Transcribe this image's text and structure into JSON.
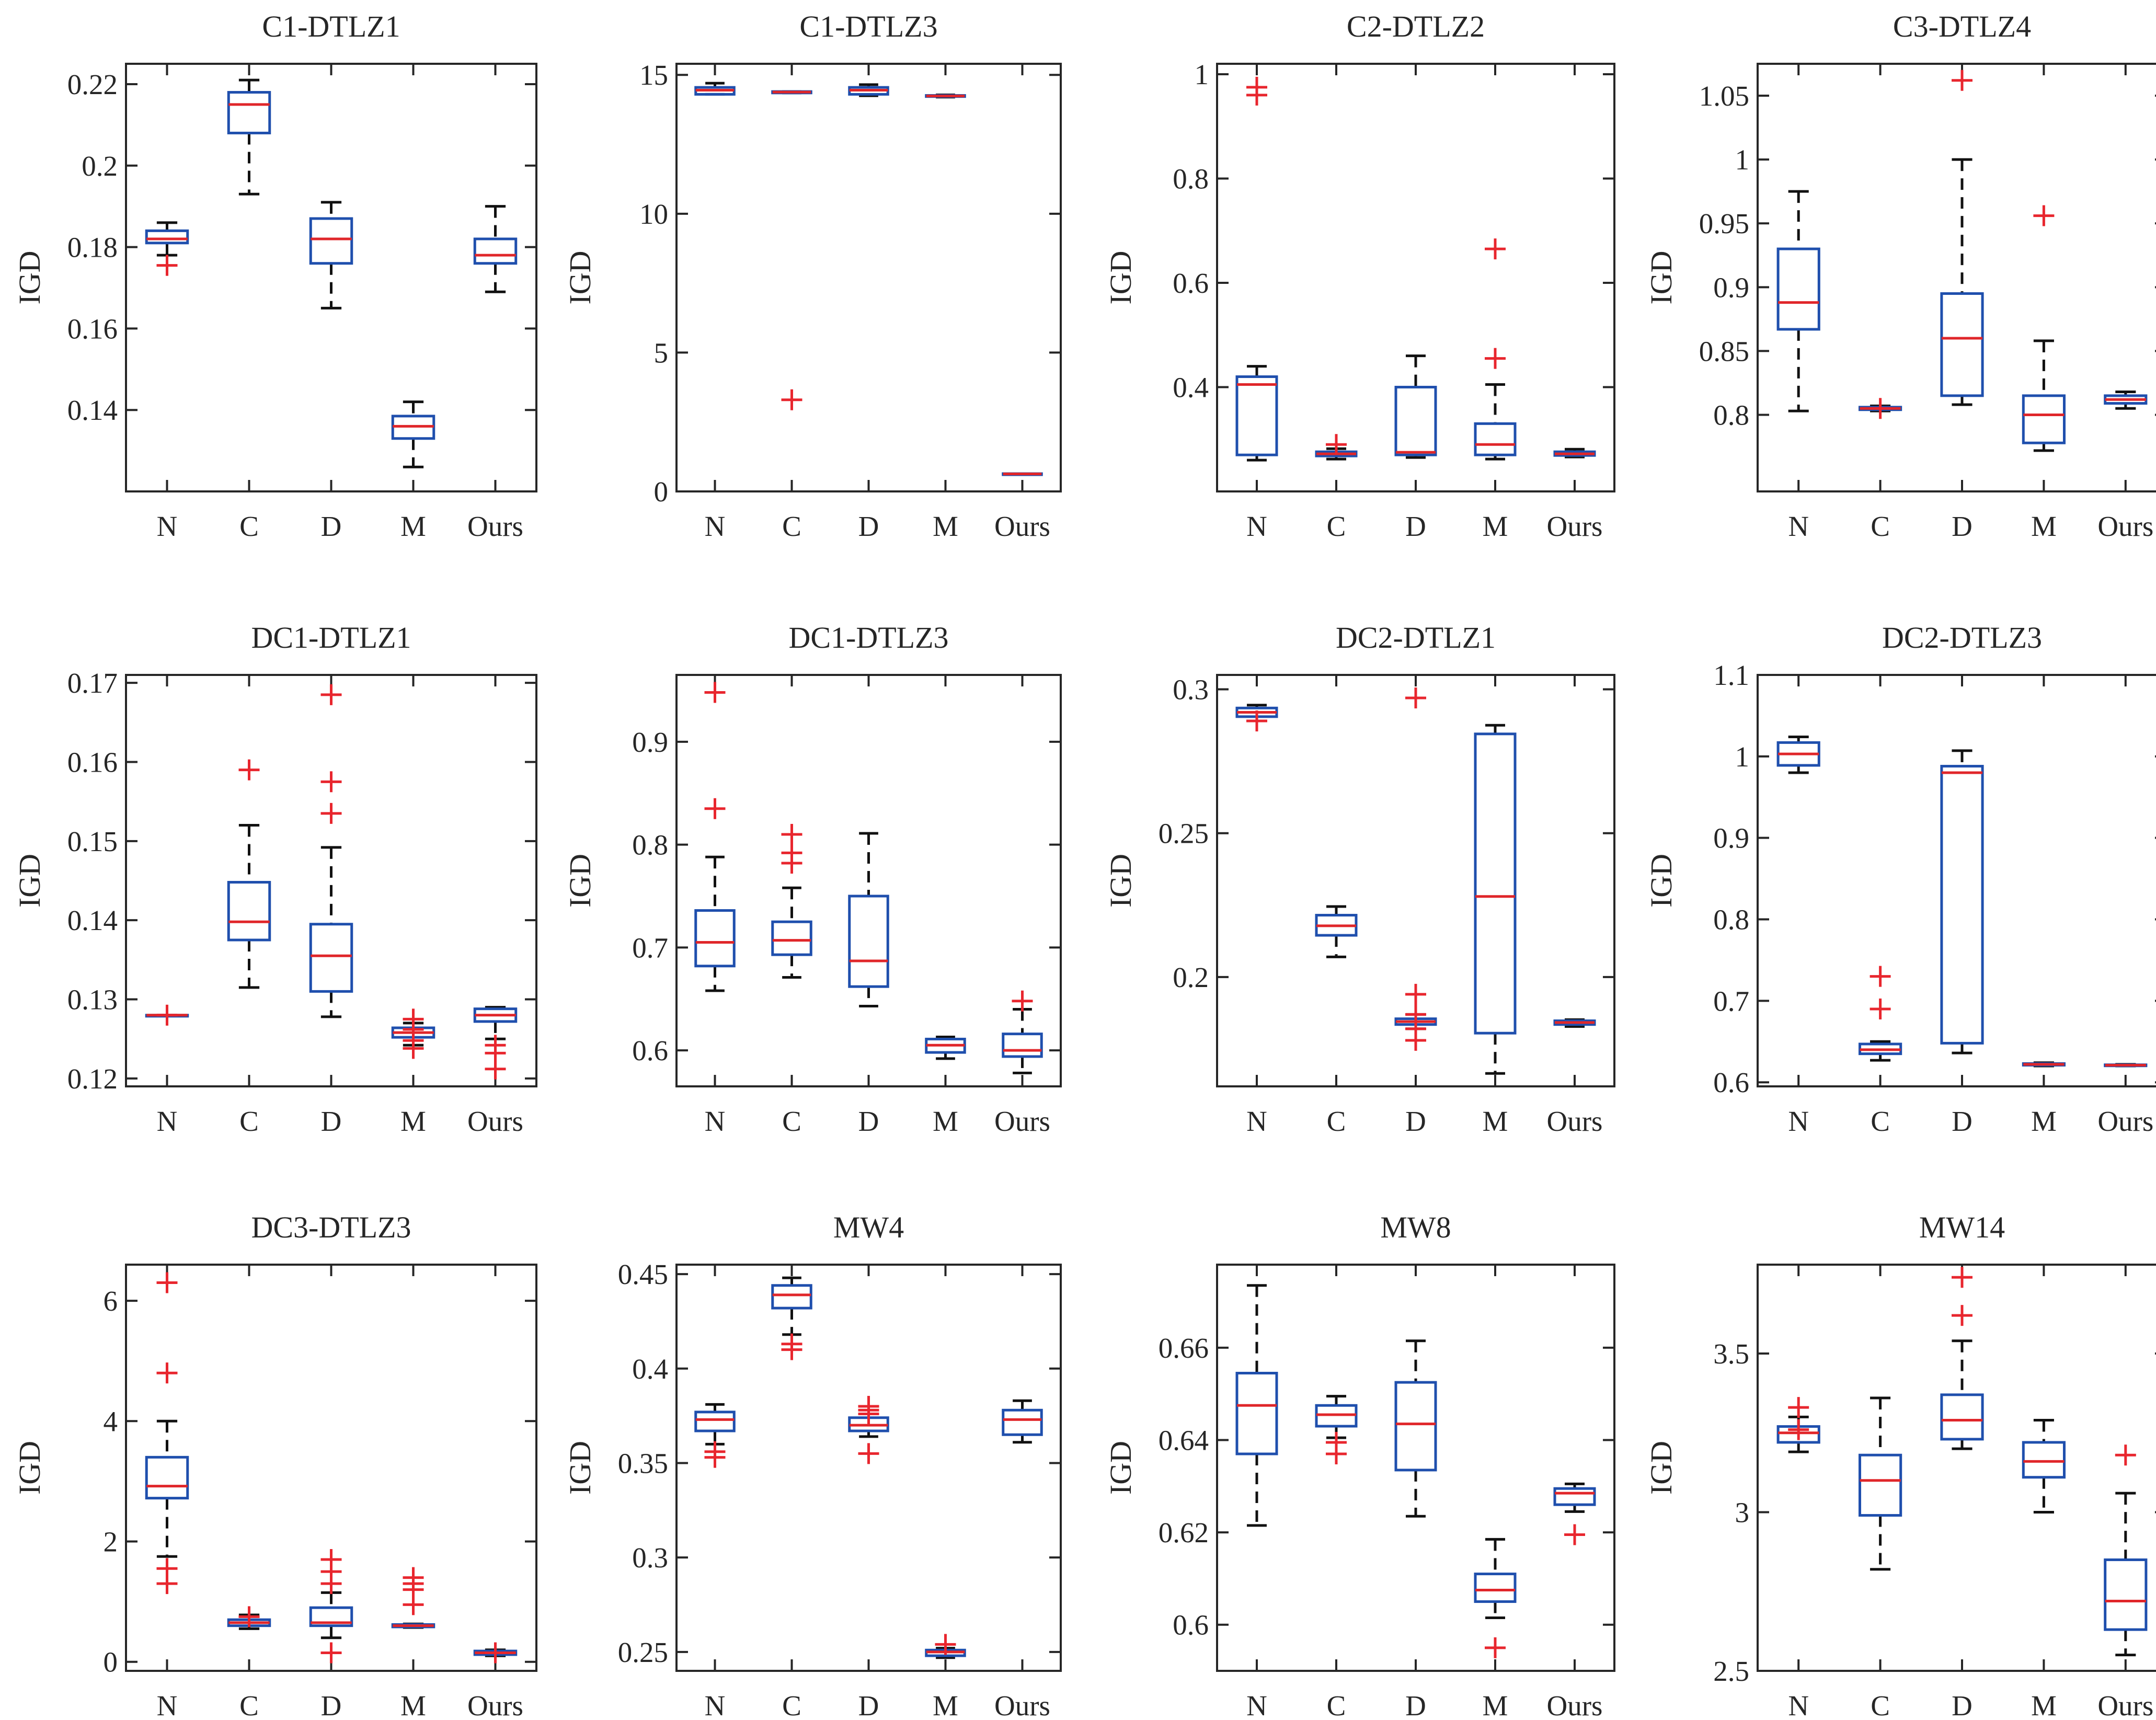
{
  "chart_data": [
    {
      "type": "box",
      "title": "C1-DTLZ1",
      "ylabel": "IGD",
      "categories": [
        "N",
        "C",
        "D",
        "M",
        "Ours"
      ],
      "ylim": [
        0.12,
        0.225
      ],
      "yticks": [
        0.14,
        0.16,
        0.18,
        0.2,
        0.22
      ],
      "ytick_labels": [
        "0.14",
        "0.16",
        "0.18",
        "0.2",
        "0.22"
      ],
      "boxes": [
        {
          "q1": 0.181,
          "median": 0.182,
          "q3": 0.184,
          "low": 0.178,
          "high": 0.186,
          "outliers": [
            0.1755
          ]
        },
        {
          "q1": 0.208,
          "median": 0.215,
          "q3": 0.218,
          "low": 0.193,
          "high": 0.221,
          "outliers": []
        },
        {
          "q1": 0.176,
          "median": 0.182,
          "q3": 0.187,
          "low": 0.165,
          "high": 0.191,
          "outliers": []
        },
        {
          "q1": 0.133,
          "median": 0.136,
          "q3": 0.1385,
          "low": 0.126,
          "high": 0.142,
          "outliers": []
        },
        {
          "q1": 0.176,
          "median": 0.178,
          "q3": 0.182,
          "low": 0.169,
          "high": 0.19,
          "outliers": []
        }
      ]
    },
    {
      "type": "box",
      "title": "C1-DTLZ3",
      "ylabel": "IGD",
      "categories": [
        "N",
        "C",
        "D",
        "M",
        "Ours"
      ],
      "ylim": [
        0,
        15.4
      ],
      "yticks": [
        0,
        5,
        10,
        15
      ],
      "ytick_labels": [
        "0",
        "5",
        "10",
        "15"
      ],
      "boxes": [
        {
          "q1": 14.3,
          "median": 14.45,
          "q3": 14.55,
          "low": 14.3,
          "high": 14.7,
          "outliers": []
        },
        {
          "q1": 14.35,
          "median": 14.38,
          "q3": 14.4,
          "low": 14.35,
          "high": 14.4,
          "outliers": [
            3.3
          ]
        },
        {
          "q1": 14.3,
          "median": 14.45,
          "q3": 14.55,
          "low": 14.25,
          "high": 14.65,
          "outliers": []
        },
        {
          "q1": 14.22,
          "median": 14.24,
          "q3": 14.26,
          "low": 14.2,
          "high": 14.28,
          "outliers": []
        },
        {
          "q1": 0.62,
          "median": 0.63,
          "q3": 0.64,
          "low": 0.62,
          "high": 0.64,
          "outliers": []
        }
      ]
    },
    {
      "type": "box",
      "title": "C2-DTLZ2",
      "ylabel": "IGD",
      "categories": [
        "N",
        "C",
        "D",
        "M",
        "Ours"
      ],
      "ylim": [
        0.2,
        1.02
      ],
      "yticks": [
        0.4,
        0.6,
        0.8,
        1
      ],
      "ytick_labels": [
        "0.4",
        "0.6",
        "0.8",
        "1"
      ],
      "boxes": [
        {
          "q1": 0.27,
          "median": 0.405,
          "q3": 0.42,
          "low": 0.26,
          "high": 0.44,
          "outliers": [
            0.96,
            0.975
          ]
        },
        {
          "q1": 0.268,
          "median": 0.272,
          "q3": 0.276,
          "low": 0.262,
          "high": 0.282,
          "outliers": [
            0.29
          ]
        },
        {
          "q1": 0.27,
          "median": 0.275,
          "q3": 0.4,
          "low": 0.265,
          "high": 0.46,
          "outliers": []
        },
        {
          "q1": 0.27,
          "median": 0.29,
          "q3": 0.33,
          "low": 0.262,
          "high": 0.405,
          "outliers": [
            0.455,
            0.665
          ]
        },
        {
          "q1": 0.269,
          "median": 0.272,
          "q3": 0.276,
          "low": 0.266,
          "high": 0.281,
          "outliers": []
        }
      ]
    },
    {
      "type": "box",
      "title": "C3-DTLZ4",
      "ylabel": "IGD",
      "categories": [
        "N",
        "C",
        "D",
        "M",
        "Ours"
      ],
      "ylim": [
        0.74,
        1.075
      ],
      "yticks": [
        0.8,
        0.85,
        0.9,
        0.95,
        1,
        1.05
      ],
      "ytick_labels": [
        "0.8",
        "0.85",
        "0.9",
        "0.95",
        "1",
        "1.05"
      ],
      "boxes": [
        {
          "q1": 0.867,
          "median": 0.888,
          "q3": 0.93,
          "low": 0.803,
          "high": 0.975,
          "outliers": []
        },
        {
          "q1": 0.804,
          "median": 0.805,
          "q3": 0.806,
          "low": 0.803,
          "high": 0.807,
          "outliers": [
            0.805
          ]
        },
        {
          "q1": 0.815,
          "median": 0.86,
          "q3": 0.895,
          "low": 0.808,
          "high": 1.0,
          "outliers": [
            1.062
          ]
        },
        {
          "q1": 0.778,
          "median": 0.8,
          "q3": 0.815,
          "low": 0.772,
          "high": 0.858,
          "outliers": [
            0.956
          ]
        },
        {
          "q1": 0.809,
          "median": 0.812,
          "q3": 0.815,
          "low": 0.805,
          "high": 0.818,
          "outliers": []
        }
      ]
    },
    {
      "type": "box",
      "title": "DC1-DTLZ1",
      "ylabel": "IGD",
      "categories": [
        "N",
        "C",
        "D",
        "M",
        "Ours"
      ],
      "ylim": [
        0.119,
        0.171
      ],
      "yticks": [
        0.12,
        0.13,
        0.14,
        0.15,
        0.16,
        0.17
      ],
      "ytick_labels": [
        "0.12",
        "0.13",
        "0.14",
        "0.15",
        "0.16",
        "0.17"
      ],
      "boxes": [
        {
          "q1": 0.128,
          "median": 0.128,
          "q3": 0.128,
          "low": 0.128,
          "high": 0.128,
          "outliers": [
            0.128
          ]
        },
        {
          "q1": 0.1375,
          "median": 0.1398,
          "q3": 0.1448,
          "low": 0.1315,
          "high": 0.152,
          "outliers": [
            0.159
          ]
        },
        {
          "q1": 0.131,
          "median": 0.1355,
          "q3": 0.1395,
          "low": 0.1278,
          "high": 0.1492,
          "outliers": [
            0.1535,
            0.1575,
            0.1685
          ]
        },
        {
          "q1": 0.1252,
          "median": 0.1258,
          "q3": 0.1264,
          "low": 0.1242,
          "high": 0.127,
          "outliers": [
            0.1238,
            0.1248,
            0.1262,
            0.1275
          ]
        },
        {
          "q1": 0.1272,
          "median": 0.128,
          "q3": 0.1288,
          "low": 0.125,
          "high": 0.129,
          "outliers": [
            0.1212,
            0.1232,
            0.1242
          ]
        }
      ]
    },
    {
      "type": "box",
      "title": "DC1-DTLZ3",
      "ylabel": "IGD",
      "categories": [
        "N",
        "C",
        "D",
        "M",
        "Ours"
      ],
      "ylim": [
        0.565,
        0.965
      ],
      "yticks": [
        0.6,
        0.7,
        0.8,
        0.9
      ],
      "ytick_labels": [
        "0.6",
        "0.7",
        "0.8",
        "0.9"
      ],
      "boxes": [
        {
          "q1": 0.682,
          "median": 0.705,
          "q3": 0.736,
          "low": 0.658,
          "high": 0.788,
          "outliers": [
            0.835,
            0.948
          ]
        },
        {
          "q1": 0.693,
          "median": 0.707,
          "q3": 0.725,
          "low": 0.671,
          "high": 0.758,
          "outliers": [
            0.782,
            0.792,
            0.81
          ]
        },
        {
          "q1": 0.662,
          "median": 0.687,
          "q3": 0.75,
          "low": 0.643,
          "high": 0.811,
          "outliers": []
        },
        {
          "q1": 0.598,
          "median": 0.605,
          "q3": 0.611,
          "low": 0.592,
          "high": 0.613,
          "outliers": []
        },
        {
          "q1": 0.594,
          "median": 0.6,
          "q3": 0.616,
          "low": 0.578,
          "high": 0.64,
          "outliers": [
            0.648
          ]
        }
      ]
    },
    {
      "type": "box",
      "title": "DC2-DTLZ1",
      "ylabel": "IGD",
      "categories": [
        "N",
        "C",
        "D",
        "M",
        "Ours"
      ],
      "ylim": [
        0.162,
        0.305
      ],
      "yticks": [
        0.2,
        0.25,
        0.3
      ],
      "ytick_labels": [
        "0.2",
        "0.25",
        "0.3"
      ],
      "boxes": [
        {
          "q1": 0.2905,
          "median": 0.292,
          "q3": 0.2935,
          "low": 0.289,
          "high": 0.2945,
          "outliers": [
            0.289
          ]
        },
        {
          "q1": 0.2145,
          "median": 0.2178,
          "q3": 0.2215,
          "low": 0.207,
          "high": 0.2245,
          "outliers": []
        },
        {
          "q1": 0.1835,
          "median": 0.1845,
          "q3": 0.1855,
          "low": 0.182,
          "high": 0.187,
          "outliers": [
            0.178,
            0.182,
            0.187,
            0.194,
            0.297
          ]
        },
        {
          "q1": 0.1805,
          "median": 0.228,
          "q3": 0.2845,
          "low": 0.1665,
          "high": 0.2875,
          "outliers": []
        },
        {
          "q1": 0.1835,
          "median": 0.1842,
          "q3": 0.1848,
          "low": 0.1828,
          "high": 0.1852,
          "outliers": []
        }
      ]
    },
    {
      "type": "box",
      "title": "DC2-DTLZ3",
      "ylabel": "IGD",
      "categories": [
        "N",
        "C",
        "D",
        "M",
        "Ours"
      ],
      "ylim": [
        0.595,
        1.1
      ],
      "yticks": [
        0.6,
        0.7,
        0.8,
        0.9,
        1,
        1.1
      ],
      "ytick_labels": [
        "0.6",
        "0.7",
        "0.8",
        "0.9",
        "1",
        "1.1"
      ],
      "boxes": [
        {
          "q1": 0.989,
          "median": 1.003,
          "q3": 1.017,
          "low": 0.98,
          "high": 1.024,
          "outliers": []
        },
        {
          "q1": 0.635,
          "median": 0.64,
          "q3": 0.647,
          "low": 0.627,
          "high": 0.65,
          "outliers": [
            0.69,
            0.73
          ]
        },
        {
          "q1": 0.648,
          "median": 0.98,
          "q3": 0.988,
          "low": 0.636,
          "high": 1.007,
          "outliers": []
        },
        {
          "q1": 0.621,
          "median": 0.622,
          "q3": 0.623,
          "low": 0.62,
          "high": 0.624,
          "outliers": []
        },
        {
          "q1": 0.6205,
          "median": 0.621,
          "q3": 0.6215,
          "low": 0.62,
          "high": 0.622,
          "outliers": []
        }
      ]
    },
    {
      "type": "box",
      "title": "DC3-DTLZ3",
      "ylabel": "IGD",
      "categories": [
        "N",
        "C",
        "D",
        "M",
        "Ours"
      ],
      "ylim": [
        -0.15,
        6.6
      ],
      "yticks": [
        0,
        2,
        4,
        6
      ],
      "ytick_labels": [
        "0",
        "2",
        "4",
        "6"
      ],
      "boxes": [
        {
          "q1": 2.72,
          "median": 2.92,
          "q3": 3.4,
          "low": 1.75,
          "high": 4.0,
          "outliers": [
            1.3,
            1.55,
            4.8,
            6.3
          ]
        },
        {
          "q1": 0.6,
          "median": 0.65,
          "q3": 0.7,
          "low": 0.55,
          "high": 0.78,
          "outliers": [
            0.75
          ]
        },
        {
          "q1": 0.6,
          "median": 0.65,
          "q3": 0.9,
          "low": 0.4,
          "high": 1.15,
          "outliers": [
            0.15,
            1.3,
            1.5,
            1.7
          ]
        },
        {
          "q1": 0.58,
          "median": 0.6,
          "q3": 0.62,
          "low": 0.57,
          "high": 0.63,
          "outliers": [
            0.95,
            1.2,
            1.3,
            1.4
          ]
        },
        {
          "q1": 0.12,
          "median": 0.15,
          "q3": 0.18,
          "low": 0.1,
          "high": 0.2,
          "outliers": [
            0.15
          ]
        }
      ]
    },
    {
      "type": "box",
      "title": "MW4",
      "ylabel": "IGD",
      "categories": [
        "N",
        "C",
        "D",
        "M",
        "Ours"
      ],
      "ylim": [
        0.24,
        0.455
      ],
      "yticks": [
        0.25,
        0.3,
        0.35,
        0.4,
        0.45
      ],
      "ytick_labels": [
        "0.25",
        "0.3",
        "0.35",
        "0.4",
        "0.45"
      ],
      "boxes": [
        {
          "q1": 0.367,
          "median": 0.373,
          "q3": 0.377,
          "low": 0.36,
          "high": 0.381,
          "outliers": [
            0.353,
            0.356
          ]
        },
        {
          "q1": 0.432,
          "median": 0.439,
          "q3": 0.444,
          "low": 0.418,
          "high": 0.448,
          "outliers": [
            0.41,
            0.413
          ]
        },
        {
          "q1": 0.367,
          "median": 0.37,
          "q3": 0.374,
          "low": 0.364,
          "high": 0.38,
          "outliers": [
            0.355,
            0.376,
            0.378,
            0.38
          ]
        },
        {
          "q1": 0.248,
          "median": 0.25,
          "q3": 0.251,
          "low": 0.247,
          "high": 0.252,
          "outliers": [
            0.254
          ]
        },
        {
          "q1": 0.365,
          "median": 0.373,
          "q3": 0.378,
          "low": 0.361,
          "high": 0.383,
          "outliers": []
        }
      ]
    },
    {
      "type": "box",
      "title": "MW8",
      "ylabel": "IGD",
      "categories": [
        "N",
        "C",
        "D",
        "M",
        "Ours"
      ],
      "ylim": [
        0.59,
        0.678
      ],
      "yticks": [
        0.6,
        0.62,
        0.64,
        0.66
      ],
      "ytick_labels": [
        "0.6",
        "0.62",
        "0.64",
        "0.66"
      ],
      "boxes": [
        {
          "q1": 0.637,
          "median": 0.6475,
          "q3": 0.6545,
          "low": 0.6215,
          "high": 0.6735,
          "outliers": []
        },
        {
          "q1": 0.643,
          "median": 0.6455,
          "q3": 0.6475,
          "low": 0.6405,
          "high": 0.6495,
          "outliers": [
            0.637,
            0.6395
          ]
        },
        {
          "q1": 0.6335,
          "median": 0.6435,
          "q3": 0.6525,
          "low": 0.6235,
          "high": 0.6615,
          "outliers": []
        },
        {
          "q1": 0.605,
          "median": 0.6075,
          "q3": 0.611,
          "low": 0.6015,
          "high": 0.6185,
          "outliers": [
            0.595
          ]
        },
        {
          "q1": 0.626,
          "median": 0.6285,
          "q3": 0.6295,
          "low": 0.6245,
          "high": 0.6305,
          "outliers": [
            0.6195
          ]
        }
      ]
    },
    {
      "type": "box",
      "title": "MW14",
      "ylabel": "IGD",
      "categories": [
        "N",
        "C",
        "D",
        "M",
        "Ours"
      ],
      "ylim": [
        2.5,
        3.78
      ],
      "yticks": [
        2.5,
        3,
        3.5
      ],
      "ytick_labels": [
        "2.5",
        "3",
        "3.5"
      ],
      "boxes": [
        {
          "q1": 3.22,
          "median": 3.25,
          "q3": 3.27,
          "low": 3.19,
          "high": 3.3,
          "outliers": [
            3.26,
            3.33
          ]
        },
        {
          "q1": 2.99,
          "median": 3.1,
          "q3": 3.18,
          "low": 2.82,
          "high": 3.36,
          "outliers": []
        },
        {
          "q1": 3.23,
          "median": 3.29,
          "q3": 3.37,
          "low": 3.2,
          "high": 3.54,
          "outliers": [
            3.62,
            3.74
          ]
        },
        {
          "q1": 3.11,
          "median": 3.16,
          "q3": 3.22,
          "low": 3.0,
          "high": 3.29,
          "outliers": []
        },
        {
          "q1": 2.63,
          "median": 2.72,
          "q3": 2.85,
          "low": 2.55,
          "high": 3.06,
          "outliers": [
            3.18
          ]
        }
      ]
    }
  ]
}
